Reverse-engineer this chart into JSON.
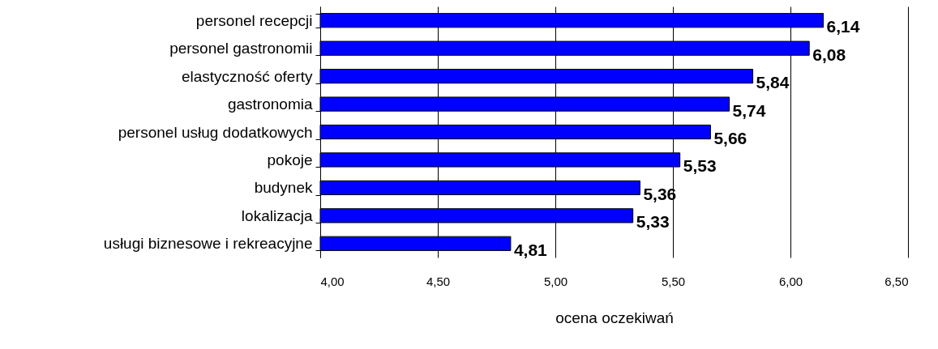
{
  "chart_data": {
    "type": "bar",
    "orientation": "horizontal",
    "categories": [
      "personel recepcji",
      "personel gastronomii",
      "elastyczność oferty",
      "gastronomia",
      "personel usług dodatkowych",
      "pokoje",
      "budynek",
      "lokalizacja",
      "usługi biznesowe i rekreacyjne"
    ],
    "values": [
      6.14,
      6.08,
      5.84,
      5.74,
      5.66,
      5.53,
      5.36,
      5.33,
      4.81
    ],
    "value_labels": [
      "6,14",
      "6,08",
      "5,84",
      "5,74",
      "5,66",
      "5,53",
      "5,36",
      "5,33",
      "4,81"
    ],
    "color": "#0000ff",
    "xlabel": "ocena oczekiwań",
    "xlim": [
      4,
      6.5
    ],
    "xticks": [
      {
        "value": 4,
        "label": "4,00"
      },
      {
        "value": 4.5,
        "label": "4,50"
      },
      {
        "value": 5,
        "label": "5,00"
      },
      {
        "value": 5.5,
        "label": "5,50"
      },
      {
        "value": 6,
        "label": "6,00"
      },
      {
        "value": 6.5,
        "label": "6,50"
      }
    ],
    "grid": "x"
  }
}
